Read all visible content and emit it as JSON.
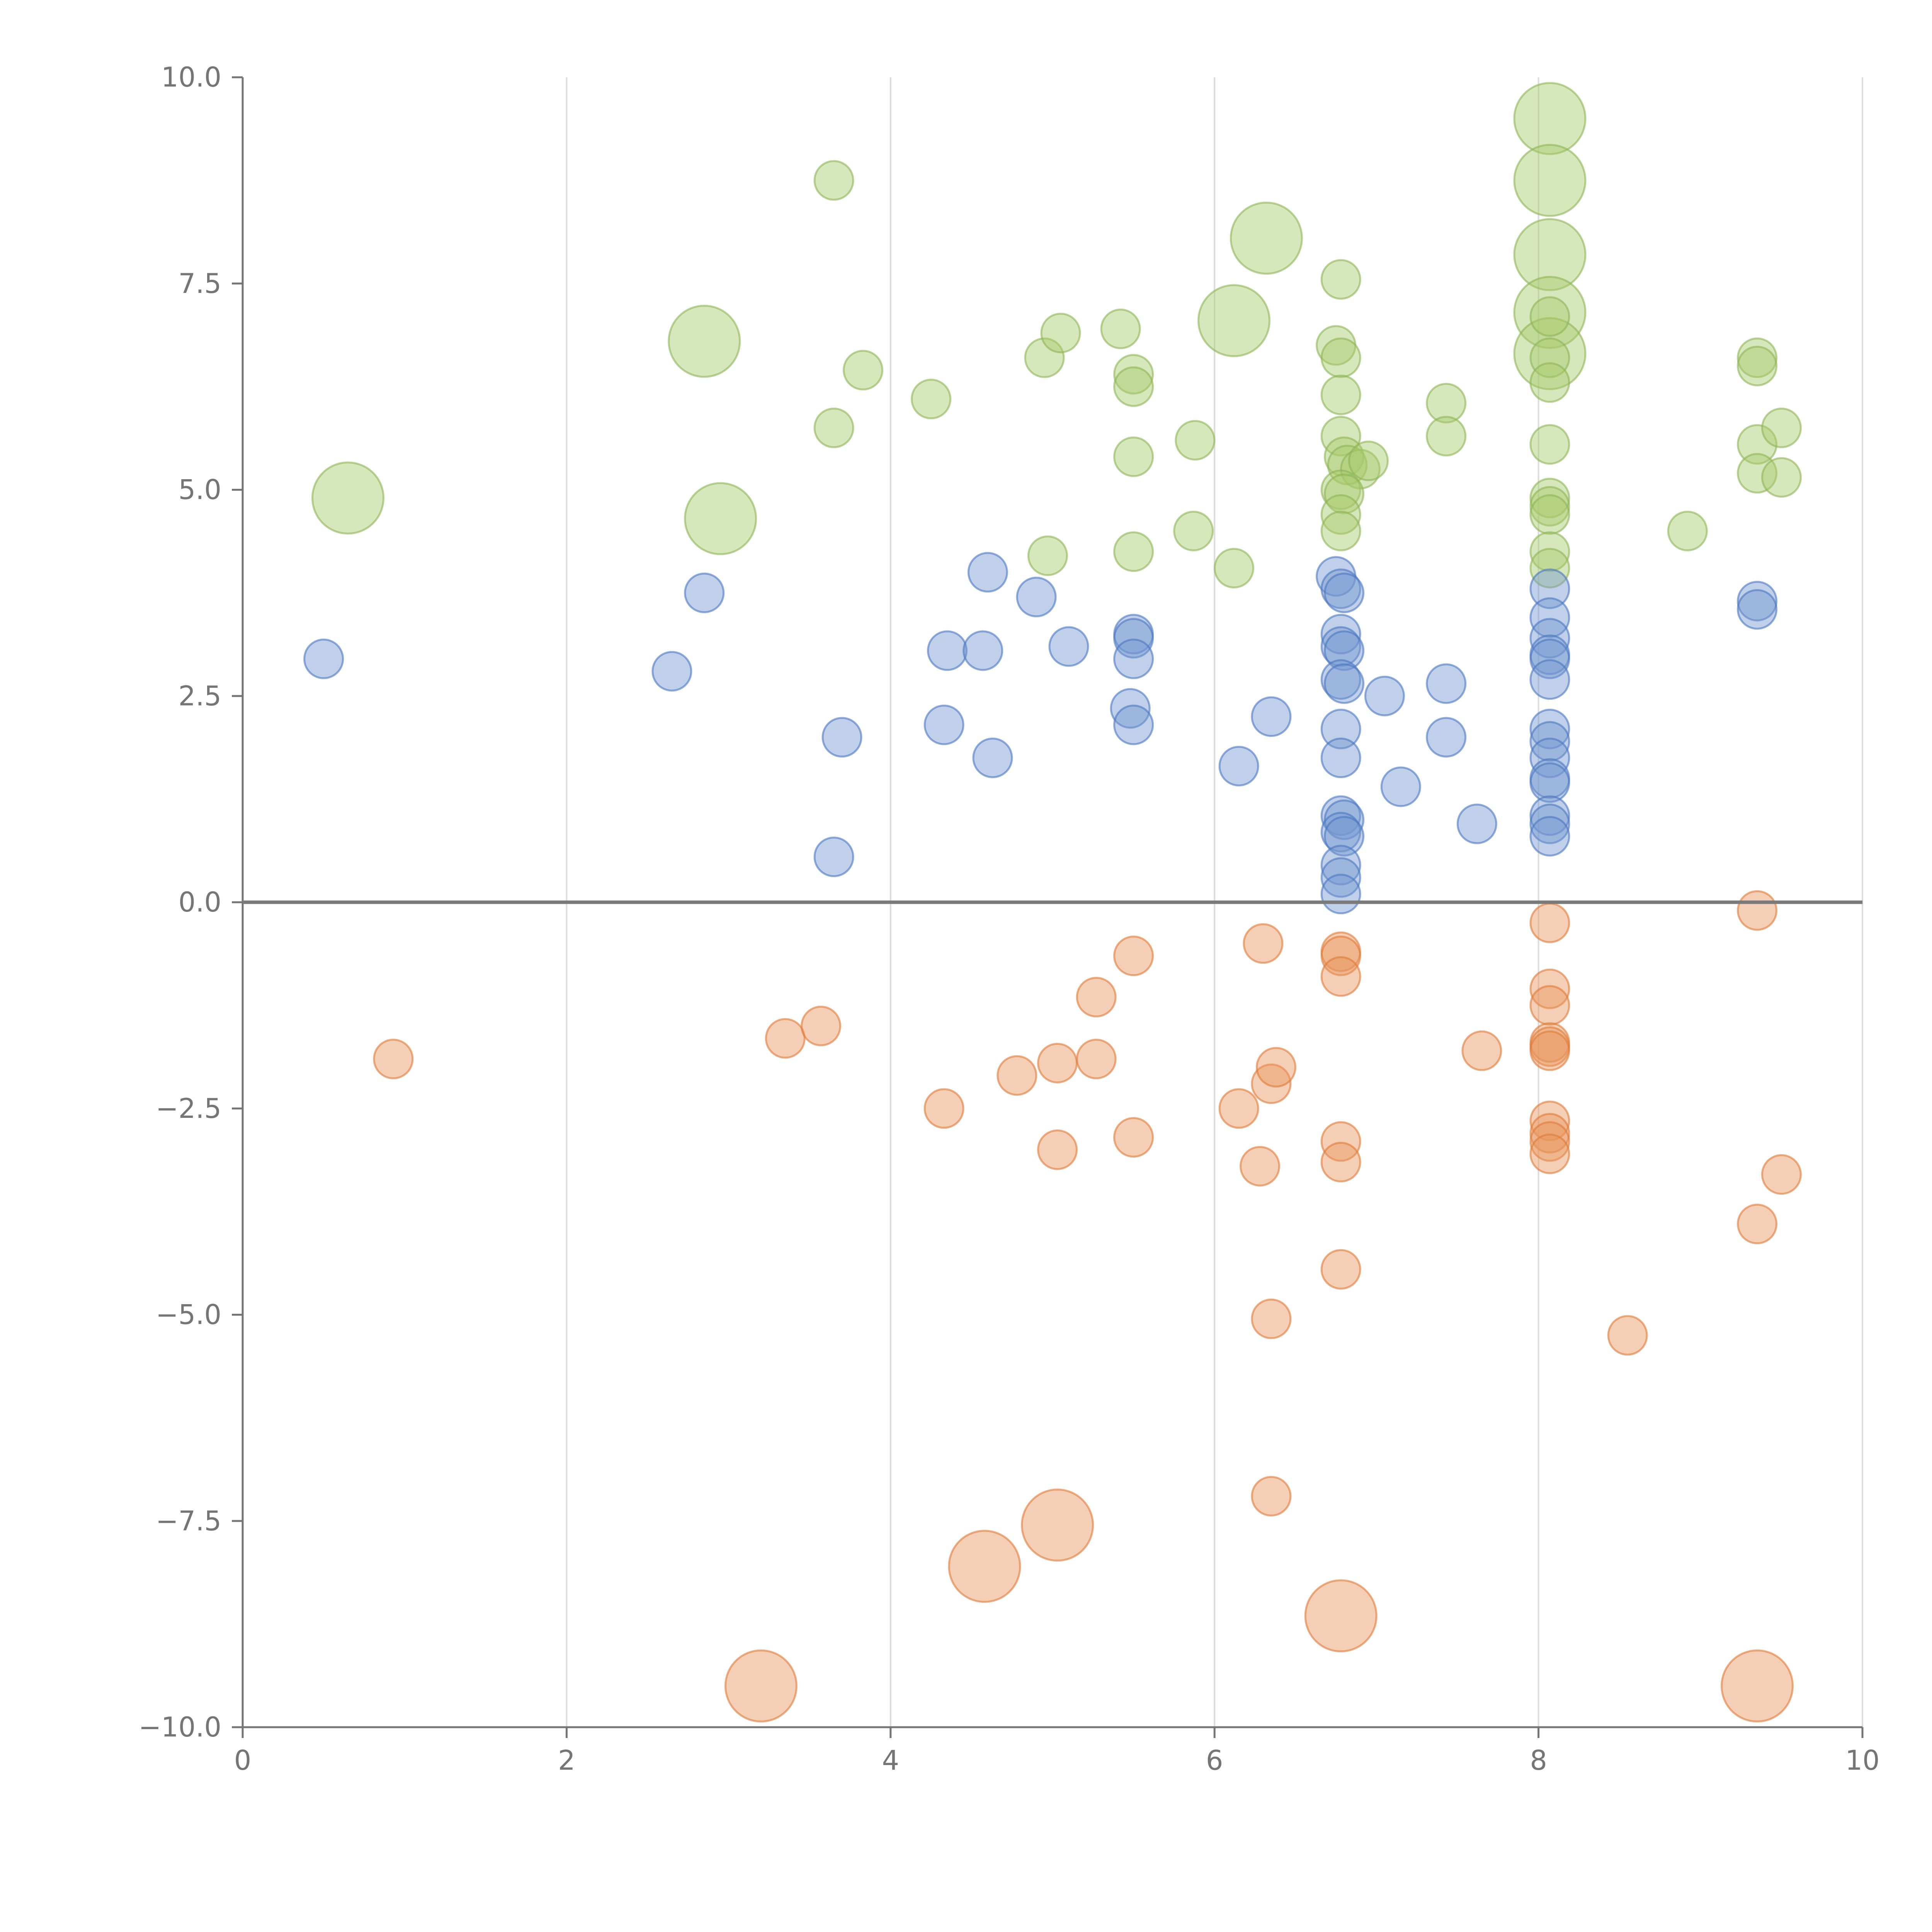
{
  "chart_data": {
    "type": "scatter",
    "title": "",
    "xlabel": "",
    "ylabel": "",
    "xlim": [
      0,
      10
    ],
    "ylim": [
      -10,
      10
    ],
    "x_ticks": [
      "0",
      "2",
      "4",
      "6",
      "8",
      "10"
    ],
    "x_tick_values": [
      0,
      2,
      4,
      6,
      8,
      10
    ],
    "y_ticks": [
      "10.0",
      "7.5",
      "5.0",
      "2.5",
      "0.0",
      "−2.5",
      "−5.0",
      "−7.5",
      "−10.0"
    ],
    "y_tick_values": [
      10,
      7.5,
      5,
      2.5,
      0,
      -2.5,
      -5,
      -7.5,
      -10
    ],
    "vertical_gridlines": true,
    "zero_line": true,
    "colors": {
      "green_fill": "#a6c96a",
      "green_stroke": "#8db457",
      "blue_fill": "#7497d1",
      "blue_stroke": "#4a76c0",
      "orange_fill": "#e8955a",
      "orange_stroke": "#dd7a38",
      "grid": "#dcdcdc",
      "axis": "#757575",
      "zero_line": "#7a7a7a"
    },
    "series": [
      {
        "name": "green",
        "points": [
          [
            0.65,
            4.9,
            3
          ],
          [
            2.85,
            6.8,
            3
          ],
          [
            2.95,
            4.65,
            3
          ],
          [
            3.65,
            8.75,
            1
          ],
          [
            3.65,
            5.75,
            1
          ],
          [
            3.83,
            6.45,
            1
          ],
          [
            4.25,
            6.1,
            1
          ],
          [
            4.95,
            6.6,
            1
          ],
          [
            4.97,
            4.2,
            1
          ],
          [
            5.05,
            6.9,
            1
          ],
          [
            5.42,
            6.95,
            1
          ],
          [
            5.5,
            6.4,
            1
          ],
          [
            5.5,
            6.25,
            1
          ],
          [
            5.5,
            5.4,
            1
          ],
          [
            5.5,
            4.25,
            1
          ],
          [
            5.88,
            5.6,
            1
          ],
          [
            5.87,
            4.5,
            1
          ],
          [
            6.12,
            4.05,
            1
          ],
          [
            6.12,
            7.05,
            3
          ],
          [
            6.32,
            8.05,
            3
          ],
          [
            6.78,
            7.55,
            1
          ],
          [
            6.75,
            6.75,
            1
          ],
          [
            6.78,
            6.6,
            1
          ],
          [
            6.78,
            6.15,
            1
          ],
          [
            6.78,
            5.65,
            1
          ],
          [
            6.8,
            5.4,
            1
          ],
          [
            6.82,
            5.3,
            1
          ],
          [
            6.9,
            5.25,
            1
          ],
          [
            6.95,
            5.35,
            1
          ],
          [
            6.78,
            5.0,
            1
          ],
          [
            6.8,
            4.95,
            1
          ],
          [
            6.78,
            4.7,
            1
          ],
          [
            6.78,
            4.5,
            1
          ],
          [
            7.43,
            6.05,
            1
          ],
          [
            7.43,
            5.65,
            1
          ],
          [
            8.07,
            9.5,
            3
          ],
          [
            8.07,
            8.75,
            3
          ],
          [
            8.07,
            7.85,
            3
          ],
          [
            8.07,
            7.15,
            3
          ],
          [
            8.07,
            6.65,
            3
          ],
          [
            8.07,
            7.1,
            1
          ],
          [
            8.07,
            6.6,
            1
          ],
          [
            8.07,
            6.3,
            1
          ],
          [
            8.07,
            5.55,
            1
          ],
          [
            8.07,
            4.9,
            1
          ],
          [
            8.07,
            4.8,
            1
          ],
          [
            8.07,
            4.7,
            1
          ],
          [
            8.07,
            4.25,
            1
          ],
          [
            8.07,
            4.05,
            1
          ],
          [
            8.92,
            4.5,
            1
          ],
          [
            9.35,
            6.6,
            1
          ],
          [
            9.35,
            6.5,
            1
          ],
          [
            9.35,
            5.55,
            1
          ],
          [
            9.35,
            5.2,
            1
          ],
          [
            9.5,
            5.75,
            1
          ],
          [
            9.5,
            5.15,
            1
          ]
        ]
      },
      {
        "name": "blue",
        "points": [
          [
            0.5,
            2.95,
            1
          ],
          [
            2.65,
            2.8,
            1
          ],
          [
            2.85,
            3.75,
            1
          ],
          [
            3.65,
            0.55,
            1
          ],
          [
            3.7,
            2.0,
            1
          ],
          [
            4.33,
            2.15,
            1
          ],
          [
            4.35,
            3.05,
            1
          ],
          [
            4.57,
            3.05,
            1
          ],
          [
            4.6,
            4.0,
            1
          ],
          [
            4.63,
            1.75,
            1
          ],
          [
            4.9,
            3.7,
            1
          ],
          [
            5.1,
            3.1,
            1
          ],
          [
            5.48,
            2.35,
            1
          ],
          [
            5.5,
            3.25,
            1
          ],
          [
            5.5,
            3.2,
            1
          ],
          [
            5.5,
            2.95,
            1
          ],
          [
            5.5,
            2.15,
            1
          ],
          [
            6.15,
            1.65,
            1
          ],
          [
            6.35,
            2.25,
            1
          ],
          [
            6.75,
            3.95,
            1
          ],
          [
            6.78,
            3.8,
            1
          ],
          [
            6.8,
            3.75,
            1
          ],
          [
            6.78,
            3.25,
            1
          ],
          [
            6.78,
            3.1,
            1
          ],
          [
            6.8,
            3.05,
            1
          ],
          [
            6.78,
            2.7,
            1
          ],
          [
            6.8,
            2.65,
            1
          ],
          [
            6.78,
            2.1,
            1
          ],
          [
            6.78,
            1.75,
            1
          ],
          [
            6.78,
            1.05,
            1
          ],
          [
            6.8,
            1.0,
            1
          ],
          [
            6.78,
            0.85,
            1
          ],
          [
            6.8,
            0.8,
            1
          ],
          [
            6.78,
            0.45,
            1
          ],
          [
            6.78,
            0.3,
            1
          ],
          [
            6.78,
            0.1,
            1
          ],
          [
            7.05,
            2.5,
            1
          ],
          [
            7.15,
            1.4,
            1
          ],
          [
            7.43,
            2.65,
            1
          ],
          [
            7.43,
            2.0,
            1
          ],
          [
            7.62,
            0.95,
            1
          ],
          [
            8.07,
            3.8,
            1
          ],
          [
            8.07,
            3.45,
            1
          ],
          [
            8.07,
            3.2,
            1
          ],
          [
            8.07,
            3.0,
            1
          ],
          [
            8.07,
            2.95,
            1
          ],
          [
            8.07,
            2.7,
            1
          ],
          [
            8.07,
            2.1,
            1
          ],
          [
            8.07,
            1.95,
            1
          ],
          [
            8.07,
            1.75,
            1
          ],
          [
            8.07,
            1.5,
            1
          ],
          [
            8.07,
            1.45,
            1
          ],
          [
            8.07,
            1.05,
            1
          ],
          [
            8.07,
            0.95,
            1
          ],
          [
            8.07,
            0.8,
            1
          ],
          [
            9.35,
            3.65,
            1
          ],
          [
            9.35,
            3.55,
            1
          ]
        ]
      },
      {
        "name": "orange",
        "points": [
          [
            0.93,
            -1.9,
            1
          ],
          [
            3.35,
            -1.65,
            1
          ],
          [
            3.57,
            -1.5,
            1
          ],
          [
            4.33,
            -2.5,
            1
          ],
          [
            4.78,
            -2.1,
            1
          ],
          [
            5.03,
            -1.95,
            1
          ],
          [
            5.03,
            -3.0,
            1
          ],
          [
            5.27,
            -1.15,
            1
          ],
          [
            5.27,
            -1.9,
            1
          ],
          [
            5.5,
            -0.65,
            1
          ],
          [
            5.5,
            -2.85,
            1
          ],
          [
            6.15,
            -2.5,
            1
          ],
          [
            6.28,
            -3.2,
            1
          ],
          [
            6.3,
            -0.5,
            1
          ],
          [
            6.35,
            -2.2,
            1
          ],
          [
            6.38,
            -2.0,
            1
          ],
          [
            6.35,
            -5.05,
            1
          ],
          [
            6.35,
            -7.2,
            1
          ],
          [
            6.78,
            -0.6,
            1
          ],
          [
            6.78,
            -0.65,
            1
          ],
          [
            6.78,
            -0.9,
            1
          ],
          [
            6.78,
            -2.9,
            1
          ],
          [
            6.78,
            -3.15,
            1
          ],
          [
            6.78,
            -4.45,
            1
          ],
          [
            7.65,
            -1.8,
            1
          ],
          [
            8.07,
            -0.25,
            1
          ],
          [
            8.07,
            -1.05,
            1
          ],
          [
            8.07,
            -1.25,
            1
          ],
          [
            8.07,
            -1.7,
            1
          ],
          [
            8.07,
            -1.75,
            1
          ],
          [
            8.07,
            -1.8,
            1
          ],
          [
            8.07,
            -2.65,
            1
          ],
          [
            8.07,
            -2.8,
            1
          ],
          [
            8.07,
            -2.9,
            1
          ],
          [
            8.07,
            -3.05,
            1
          ],
          [
            8.55,
            -5.25,
            1
          ],
          [
            9.35,
            -0.1,
            1
          ],
          [
            9.35,
            -3.9,
            1
          ],
          [
            9.5,
            -3.3,
            1
          ],
          [
            3.2,
            -9.5,
            3
          ],
          [
            4.58,
            -8.05,
            3
          ],
          [
            5.03,
            -7.55,
            3
          ],
          [
            6.78,
            -8.65,
            3
          ],
          [
            9.35,
            -9.5,
            3
          ]
        ]
      }
    ]
  }
}
